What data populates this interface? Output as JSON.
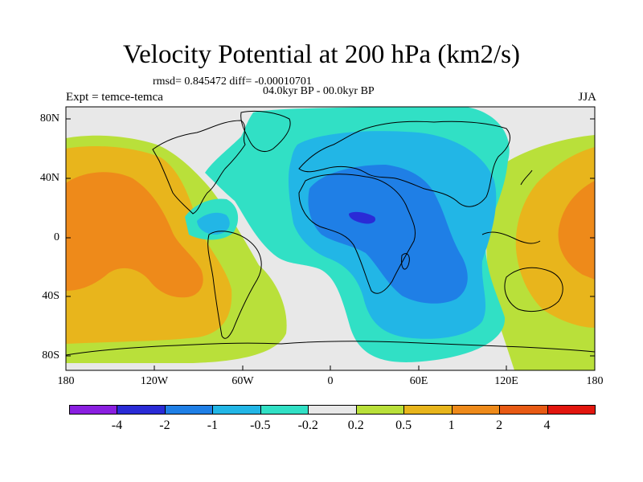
{
  "title": "Velocity Potential at 200 hPa (km2/s)",
  "stats_line": "rmsd= 0.845472 diff= -0.00010701",
  "period_line": "04.0kyr BP - 00.0kyr BP",
  "experiment_label": "Expt = temce-temca",
  "season_label": "JJA",
  "y_axis_ticks": [
    "80N",
    "40N",
    "0",
    "40S",
    "80S"
  ],
  "x_axis_ticks": [
    "180",
    "120W",
    "60W",
    "0",
    "60E",
    "120E",
    "180"
  ],
  "colorbar": {
    "colors": [
      "#8a1fe0",
      "#2a2bd6",
      "#1f7fe6",
      "#22b6e6",
      "#31e0c5",
      "#e8e8e8",
      "#b9e03a",
      "#e8b51c",
      "#ee8a1a",
      "#e85a14",
      "#e2160e"
    ],
    "labels": [
      "-4",
      "-2",
      "-1",
      "-0.5",
      "-0.2",
      "0.2",
      "0.5",
      "1",
      "2",
      "4"
    ]
  }
}
